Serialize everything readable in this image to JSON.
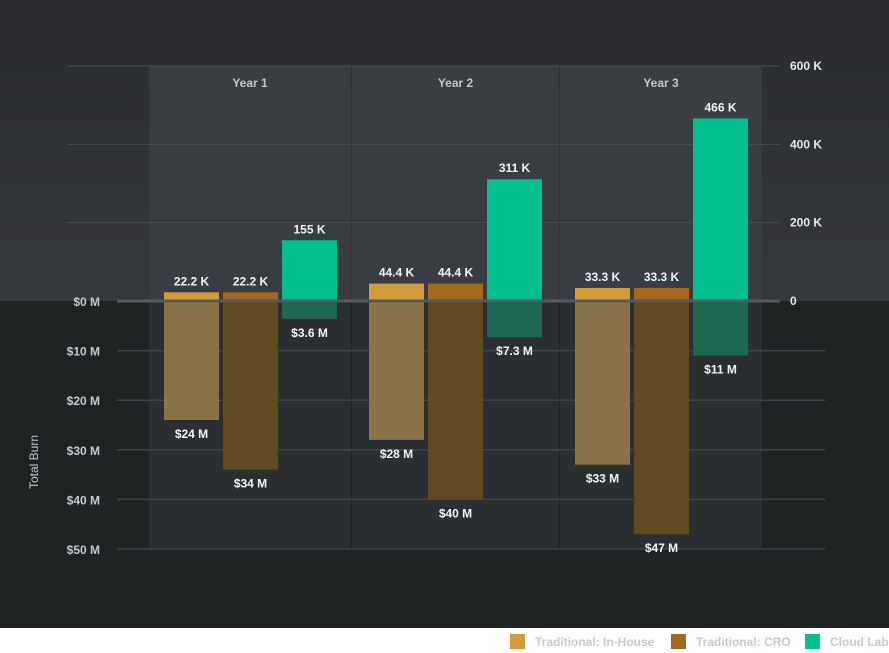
{
  "chart_data": {
    "type": "bar",
    "categories": [
      "Year 1",
      "Year 2",
      "Year 3"
    ],
    "series": [
      {
        "name": "Traditional: In-House",
        "top_values_k": [
          22.2,
          44.4,
          33.3
        ],
        "top_labels": [
          "22.2 K",
          "44.4 K",
          "33.3 K"
        ],
        "bottom_values_m": [
          24,
          28,
          33
        ],
        "bottom_labels": [
          "$24 M",
          "$28 M",
          "$33 M"
        ],
        "color": "#d39b3a",
        "bottom_color": "#8b7349"
      },
      {
        "name": "Traditional: CRO",
        "top_values_k": [
          22.2,
          44.4,
          33.3
        ],
        "top_labels": [
          "22.2 K",
          "44.4 K",
          "33.3 K"
        ],
        "bottom_values_m": [
          34,
          40,
          47
        ],
        "bottom_labels": [
          "$34 M",
          "$40 M",
          "$47 M"
        ],
        "color": "#a6671f",
        "bottom_color": "#634921"
      },
      {
        "name": "Cloud Lab",
        "top_values_k": [
          155,
          311,
          466
        ],
        "top_labels": [
          "155 K",
          "311 K",
          "466 K"
        ],
        "bottom_values_m": [
          3.6,
          7.3,
          11
        ],
        "bottom_labels": [
          "$3.6 M",
          "$7.3 M",
          "$11 M"
        ],
        "color": "#00c08f",
        "bottom_color": "#1d6652"
      }
    ],
    "top_axis": {
      "range_k": [
        0,
        600
      ],
      "ticks": [
        {
          "v": 0,
          "label": "0"
        },
        {
          "v": 200,
          "label": "200 K"
        },
        {
          "v": 400,
          "label": "400 K"
        },
        {
          "v": 600,
          "label": "600 K"
        }
      ]
    },
    "bottom_axis": {
      "label": "Total Burn",
      "range_m": [
        0,
        50
      ],
      "ticks": [
        {
          "v": 0,
          "label": "$0 M"
        },
        {
          "v": 10,
          "label": "$10 M"
        },
        {
          "v": 20,
          "label": "$20 M"
        },
        {
          "v": 30,
          "label": "$30 M"
        },
        {
          "v": 40,
          "label": "$40 M"
        },
        {
          "v": 50,
          "label": "$50 M"
        }
      ]
    },
    "legend_position": "bottom-right"
  }
}
